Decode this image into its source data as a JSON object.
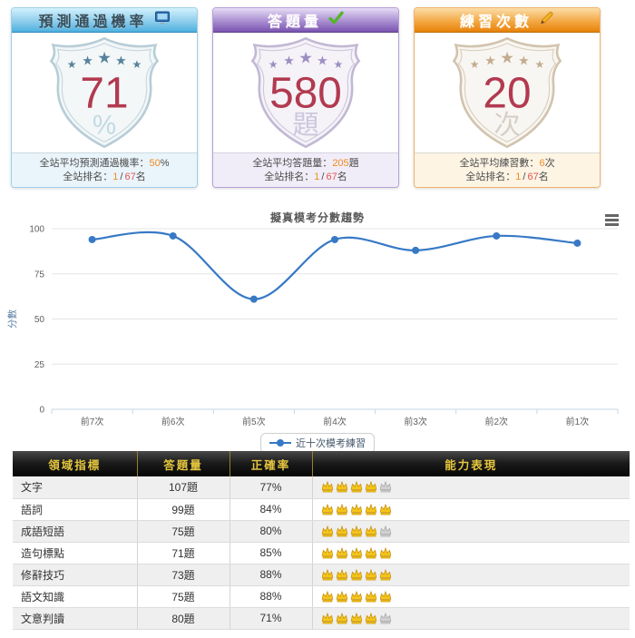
{
  "accents": {
    "stat_value_orange": "#f28a1e",
    "rank_total_red": "#e2544e"
  },
  "icons": {
    "star_glyph": "★",
    "card1_header": "monitor-icon",
    "card2_header": "check-icon",
    "card3_header": "pencil-icon",
    "chart_menu": "hamburger-menu-icon",
    "rating": "crown-icon"
  },
  "cards": [
    {
      "title": "預測通過機率",
      "value": "71",
      "unit": "%",
      "avg": {
        "label": "全站平均預測通過機率：",
        "value": "50",
        "suffix": "%"
      },
      "rank": {
        "label": "全站排名：",
        "value": "1",
        "divider": "/",
        "total": "67",
        "suffix": "名"
      },
      "colors": {
        "border": "#9ecfe8",
        "header_top": "#d3f1fd",
        "header_mid": "#8ecdec",
        "header_bottom": "#4fb0df",
        "header_line": "#2e87b8",
        "header_text": "#3a4e5a",
        "footer_bg": "#eaf5fb",
        "shield_stroke": "#b7cdd7",
        "shield_fill": "#f3f7f8",
        "star": "#55829a",
        "value": "#b23a50",
        "unit": "#c3d9e2"
      }
    },
    {
      "title": "答題量",
      "value": "580",
      "unit": "題",
      "avg": {
        "label": "全站平均答題量：",
        "value": "205",
        "suffix": "題"
      },
      "rank": {
        "label": "全站排名：",
        "value": "1",
        "divider": "/",
        "total": "67",
        "suffix": "名"
      },
      "colors": {
        "border": "#b5a0d8",
        "header_top": "#e6dcf5",
        "header_mid": "#a98ed0",
        "header_bottom": "#7b54b0",
        "header_line": "#5a3f86",
        "header_text": "#ffffff",
        "footer_bg": "#f1edf8",
        "shield_stroke": "#c2b8d4",
        "shield_fill": "#f5f3f8",
        "star": "#9c8ec2",
        "value": "#b23a50",
        "unit": "#cdc6dd"
      }
    },
    {
      "title": "練習次數",
      "value": "20",
      "unit": "次",
      "avg": {
        "label": "全站平均練習數：",
        "value": "6",
        "suffix": "次"
      },
      "rank": {
        "label": "全站排名：",
        "value": "1",
        "divider": "/",
        "total": "67",
        "suffix": "名"
      },
      "colors": {
        "border": "#f0b26a",
        "header_top": "#fbdda9",
        "header_mid": "#f3a944",
        "header_bottom": "#e8820a",
        "header_line": "#b96c08",
        "header_text": "#ffffff",
        "footer_bg": "#fdf4e4",
        "shield_stroke": "#d2c3ae",
        "shield_fill": "#f8f6f2",
        "star": "#c2ab8e",
        "value": "#b23a50",
        "unit": "#d6cfc6"
      }
    }
  ],
  "chart_data": {
    "type": "line",
    "title": "擬真模考分數趨勢",
    "categories": [
      "前7次",
      "前6次",
      "前5次",
      "前4次",
      "前3次",
      "前2次",
      "前1次"
    ],
    "series": [
      {
        "name": "近十次模考練習",
        "color": "#3779c5",
        "values": [
          94,
          96,
          61,
          94,
          88,
          96,
          92
        ]
      }
    ],
    "xlabel": "",
    "ylabel": "分數",
    "ylim": [
      0,
      100
    ],
    "yticks": [
      0,
      25,
      50,
      75,
      100
    ],
    "grid": true,
    "legend_position": "bottom"
  },
  "table": {
    "headers": [
      "領域指標",
      "答題量",
      "正確率",
      "能力表現"
    ],
    "crown_gold": "#f5c518",
    "crown_gold_stroke": "#c8920a",
    "crown_gray": "#d2d2d2",
    "crown_gray_stroke": "#a8a8a8",
    "rows": [
      {
        "domain": "文字",
        "count": "107題",
        "accuracy": "77%",
        "rating": 4,
        "rating_max": 5
      },
      {
        "domain": "語詞",
        "count": "99題",
        "accuracy": "84%",
        "rating": 5,
        "rating_max": 5
      },
      {
        "domain": "成語短語",
        "count": "75題",
        "accuracy": "80%",
        "rating": 4,
        "rating_max": 5
      },
      {
        "domain": "造句標點",
        "count": "71題",
        "accuracy": "85%",
        "rating": 5,
        "rating_max": 5
      },
      {
        "domain": "修辭技巧",
        "count": "73題",
        "accuracy": "88%",
        "rating": 5,
        "rating_max": 5
      },
      {
        "domain": "語文知識",
        "count": "75題",
        "accuracy": "88%",
        "rating": 5,
        "rating_max": 5
      },
      {
        "domain": "文意判讀",
        "count": "80題",
        "accuracy": "71%",
        "rating": 4,
        "rating_max": 5
      }
    ]
  }
}
